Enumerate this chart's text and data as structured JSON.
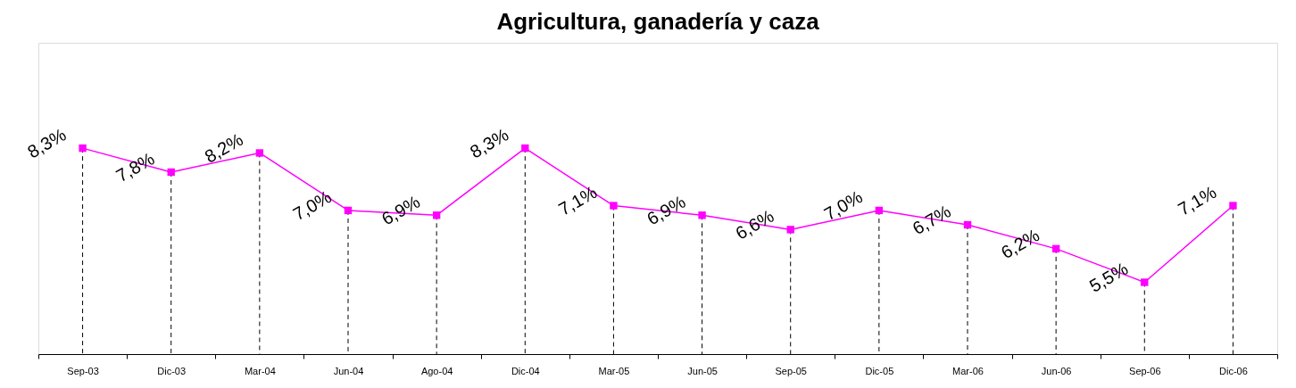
{
  "chart_data": {
    "type": "line",
    "title": "Agricultura, ganadería y caza",
    "categories": [
      "Sep-03",
      "Dic-03",
      "Mar-04",
      "Jun-04",
      "Ago-04",
      "Dic-04",
      "Mar-05",
      "Jun-05",
      "Sep-05",
      "Dic-05",
      "Mar-06",
      "Jun-06",
      "Sep-06",
      "Dic-06"
    ],
    "series": [
      {
        "color": "#ff00ff",
        "values": [
          8.3,
          7.8,
          8.2,
          7.0,
          6.9,
          8.3,
          7.1,
          6.9,
          6.6,
          7.0,
          6.7,
          6.2,
          5.5,
          7.1
        ],
        "value_labels": [
          "8,3%",
          "7,8%",
          "8,2%",
          "7,0%",
          "6,9%",
          "8,3%",
          "7,1%",
          "6,9%",
          "6,6%",
          "7,0%",
          "6,7%",
          "6,2%",
          "5,5%",
          "7,1%"
        ]
      }
    ],
    "ylim": [
      4,
      10.5
    ],
    "tick_labels": "x",
    "marker": "square",
    "line_style": "solid",
    "grid": false
  }
}
